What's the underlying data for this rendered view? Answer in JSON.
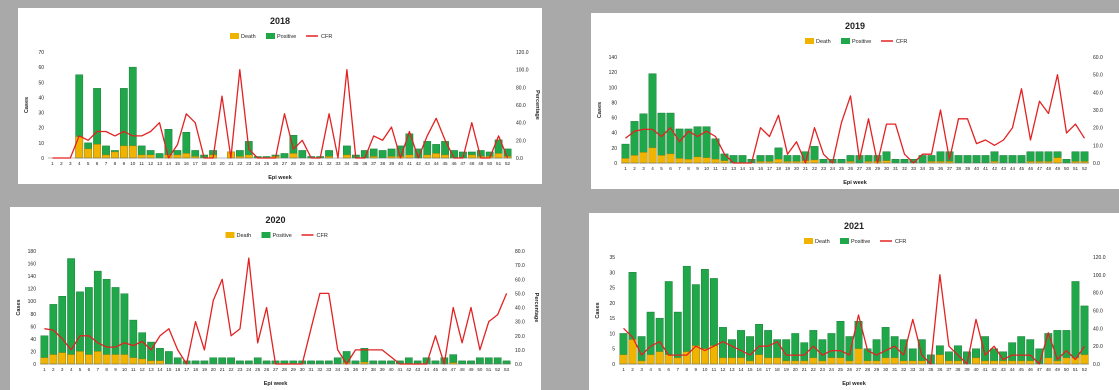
{
  "chart_data": [
    {
      "type": "bar+line",
      "title": "2018",
      "xlabel": "Epi week",
      "ylabel": "Cases",
      "y2label": "Percentage",
      "ylim": [
        0,
        70
      ],
      "y2lim": [
        0,
        120
      ],
      "yticks": [
        0,
        10,
        20,
        30,
        40,
        50,
        60,
        70
      ],
      "y2ticks": [
        "0.0",
        "20.0",
        "40.0",
        "60.0",
        "80.0",
        "100.0",
        "120.0"
      ],
      "legend": [
        "Death",
        "Positive",
        "CFR"
      ],
      "legend_position": "top-center",
      "colors": {
        "death": "#f0b400",
        "positive": "#1fa74a",
        "cfr": "#e32222"
      },
      "weeks": [
        "1",
        "2",
        "3",
        "4",
        "5",
        "6",
        "7",
        "8",
        "9",
        "10",
        "11",
        "12",
        "13",
        "14",
        "15",
        "16",
        "17",
        "18",
        "19",
        "20",
        "21",
        "22",
        "23",
        "24",
        "25",
        "26",
        "27",
        "28",
        "29",
        "30",
        "31",
        "32",
        "33",
        "34",
        "35",
        "36",
        "37",
        "38",
        "39",
        "40",
        "41",
        "42",
        "43",
        "44",
        "45",
        "46",
        "47",
        "48",
        "49",
        "50",
        "51",
        "52"
      ],
      "positive": [
        0,
        0,
        0,
        55,
        10,
        46,
        8,
        5,
        46,
        60,
        8,
        5,
        3,
        19,
        5,
        17,
        5,
        2,
        5,
        0,
        4,
        5,
        11,
        1,
        1,
        2,
        3,
        15,
        5,
        1,
        1,
        5,
        0,
        8,
        2,
        5,
        6,
        5,
        6,
        8,
        16,
        6,
        11,
        9,
        11,
        5,
        4,
        4,
        5,
        4,
        12,
        6
      ],
      "death": [
        0,
        0,
        0,
        14,
        6,
        9,
        2,
        4,
        8,
        8,
        2,
        2,
        0,
        2,
        2,
        3,
        1,
        0,
        2,
        0,
        4,
        1,
        2,
        0,
        0,
        1,
        0,
        3,
        0,
        0,
        0,
        1,
        0,
        2,
        0,
        0,
        1,
        0,
        1,
        1,
        2,
        0,
        2,
        3,
        2,
        0,
        0,
        2,
        1,
        1,
        3,
        1
      ],
      "cfr": [
        0,
        0,
        0,
        25,
        20,
        30,
        30,
        25,
        30,
        25,
        25,
        30,
        40,
        0,
        15,
        50,
        40,
        0,
        0,
        70,
        0,
        100,
        10,
        0,
        0,
        0,
        50,
        10,
        20,
        0,
        0,
        50,
        0,
        100,
        0,
        0,
        25,
        20,
        35,
        0,
        30,
        0,
        25,
        45,
        20,
        0,
        0,
        40,
        0,
        0,
        25,
        0
      ]
    },
    {
      "type": "bar+line",
      "title": "2019",
      "xlabel": "Epi week",
      "ylabel": "Cases",
      "y2label": "",
      "ylim": [
        0,
        140
      ],
      "y2lim": [
        0,
        60
      ],
      "yticks": [
        0,
        20,
        40,
        60,
        80,
        100,
        120,
        140
      ],
      "y2ticks": [
        "0.0",
        "10.0",
        "20.0",
        "30.0",
        "40.0",
        "50.0",
        "60.0"
      ],
      "legend": [
        "Death",
        "Positive",
        "CFR"
      ],
      "legend_position": "top-center",
      "colors": {
        "death": "#f0b400",
        "positive": "#1fa74a",
        "cfr": "#e32222"
      },
      "weeks": [
        "1",
        "2",
        "3",
        "4",
        "5",
        "6",
        "7",
        "8",
        "9",
        "10",
        "11",
        "12",
        "13",
        "14",
        "15",
        "16",
        "17",
        "18",
        "19",
        "20",
        "21",
        "22",
        "23",
        "24",
        "25",
        "26",
        "27",
        "28",
        "29",
        "30",
        "31",
        "32",
        "33",
        "34",
        "35",
        "36",
        "37",
        "38",
        "39",
        "40",
        "41",
        "42",
        "43",
        "44",
        "45",
        "46",
        "47",
        "48",
        "49",
        "50",
        "51",
        "52"
      ],
      "positive": [
        25,
        55,
        65,
        118,
        66,
        66,
        45,
        45,
        48,
        48,
        32,
        12,
        10,
        10,
        5,
        10,
        10,
        20,
        10,
        10,
        15,
        22,
        5,
        5,
        5,
        10,
        10,
        10,
        10,
        15,
        5,
        5,
        5,
        10,
        10,
        15,
        15,
        10,
        10,
        10,
        10,
        15,
        10,
        10,
        10,
        15,
        15,
        15,
        15,
        5,
        15,
        15
      ],
      "death": [
        6,
        10,
        14,
        20,
        10,
        12,
        6,
        5,
        8,
        7,
        5,
        3,
        0,
        0,
        0,
        2,
        2,
        5,
        2,
        2,
        3,
        4,
        0,
        0,
        0,
        2,
        0,
        2,
        2,
        3,
        0,
        0,
        0,
        0,
        2,
        2,
        2,
        0,
        0,
        0,
        0,
        2,
        0,
        0,
        0,
        2,
        2,
        2,
        7,
        0,
        2,
        2
      ],
      "cfr": [
        14,
        18,
        19,
        19,
        15,
        20,
        12,
        18,
        15,
        18,
        15,
        5,
        0,
        0,
        0,
        20,
        15,
        27,
        5,
        12,
        0,
        20,
        5,
        0,
        23,
        38,
        2,
        25,
        0,
        22,
        22,
        5,
        0,
        5,
        5,
        30,
        2,
        25,
        25,
        11,
        13,
        10,
        13,
        20,
        42,
        13,
        35,
        28,
        50,
        17,
        22,
        14
      ]
    },
    {
      "type": "bar+line",
      "title": "2020",
      "xlabel": "Epi week",
      "ylabel": "Cases",
      "y2label": "Percentage",
      "ylim": [
        0,
        180
      ],
      "y2lim": [
        0,
        80
      ],
      "yticks": [
        0,
        20,
        40,
        60,
        80,
        100,
        120,
        140,
        160,
        180
      ],
      "y2ticks": [
        "0.0",
        "10.0",
        "20.0",
        "30.0",
        "40.0",
        "50.0",
        "60.0",
        "70.0",
        "80.0"
      ],
      "legend": [
        "Death",
        "Positive",
        "CFR"
      ],
      "legend_position": "top-center",
      "colors": {
        "death": "#f0b400",
        "positive": "#1fa74a",
        "cfr": "#e32222"
      },
      "weeks": [
        "1",
        "2",
        "3",
        "4",
        "5",
        "6",
        "7",
        "8",
        "9",
        "10",
        "11",
        "12",
        "13",
        "14",
        "15",
        "16",
        "17",
        "18",
        "19",
        "20",
        "21",
        "22",
        "23",
        "24",
        "25",
        "26",
        "27",
        "28",
        "29",
        "30",
        "31",
        "32",
        "33",
        "34",
        "35",
        "36",
        "37",
        "38",
        "39",
        "40",
        "41",
        "42",
        "43",
        "44",
        "45",
        "46",
        "47",
        "48",
        "49",
        "50",
        "51",
        "52",
        "53"
      ],
      "positive": [
        45,
        95,
        108,
        168,
        115,
        122,
        148,
        135,
        122,
        112,
        70,
        50,
        35,
        25,
        20,
        10,
        5,
        5,
        5,
        10,
        10,
        10,
        5,
        5,
        10,
        5,
        5,
        5,
        5,
        5,
        5,
        5,
        5,
        10,
        20,
        5,
        25,
        5,
        5,
        5,
        5,
        10,
        5,
        10,
        5,
        10,
        15,
        5,
        5,
        10,
        10,
        10,
        5
      ],
      "death": [
        10,
        15,
        18,
        15,
        20,
        15,
        20,
        15,
        15,
        15,
        10,
        8,
        5,
        5,
        0,
        0,
        0,
        0,
        0,
        0,
        0,
        0,
        0,
        0,
        0,
        0,
        0,
        0,
        0,
        0,
        0,
        0,
        0,
        0,
        2,
        0,
        3,
        0,
        0,
        0,
        0,
        0,
        0,
        0,
        0,
        0,
        2,
        0,
        0,
        0,
        0,
        0,
        0
      ],
      "cfr": [
        25,
        24,
        18,
        10,
        20,
        20,
        15,
        12,
        12,
        15,
        13,
        16,
        10,
        20,
        25,
        10,
        0,
        30,
        10,
        45,
        60,
        20,
        25,
        75,
        15,
        40,
        0,
        0,
        0,
        0,
        25,
        50,
        50,
        10,
        0,
        10,
        10,
        10,
        10,
        5,
        0,
        0,
        0,
        0,
        20,
        0,
        40,
        15,
        40,
        10,
        30,
        35,
        50
      ]
    },
    {
      "type": "bar+line",
      "title": "2021",
      "xlabel": "Epi week",
      "ylabel": "Cases",
      "y2label": "",
      "ylim": [
        0,
        35
      ],
      "y2lim": [
        0,
        120
      ],
      "yticks": [
        0,
        5,
        10,
        15,
        20,
        25,
        30,
        35
      ],
      "y2ticks": [
        "0.0",
        "20.0",
        "40.0",
        "60.0",
        "80.0",
        "100.0",
        "120.0"
      ],
      "legend": [
        "Death",
        "Positive",
        "CFR"
      ],
      "legend_position": "top-center",
      "colors": {
        "death": "#f0b400",
        "positive": "#1fa74a",
        "cfr": "#e32222"
      },
      "weeks": [
        "1",
        "2",
        "3",
        "4",
        "5",
        "6",
        "7",
        "8",
        "9",
        "10",
        "11",
        "12",
        "13",
        "14",
        "15",
        "16",
        "17",
        "18",
        "19",
        "20",
        "21",
        "22",
        "23",
        "24",
        "25",
        "26",
        "27",
        "28",
        "29",
        "30",
        "31",
        "32",
        "33",
        "34",
        "35",
        "36",
        "37",
        "38",
        "39",
        "40",
        "41",
        "42",
        "43",
        "44",
        "45",
        "46",
        "47",
        "48",
        "49",
        "50",
        "51",
        "52"
      ],
      "positive": [
        10,
        30,
        9,
        17,
        15,
        27,
        17,
        32,
        26,
        31,
        28,
        12,
        8,
        11,
        9,
        13,
        11,
        8,
        8,
        10,
        7,
        11,
        8,
        10,
        14,
        9,
        14,
        5,
        8,
        12,
        9,
        8,
        5,
        8,
        3,
        6,
        4,
        6,
        4,
        5,
        9,
        5,
        4,
        7,
        9,
        8,
        5,
        10,
        11,
        11,
        27,
        19
      ],
      "death": [
        3,
        8,
        1,
        3,
        4,
        3,
        2,
        4,
        6,
        5,
        6,
        2,
        2,
        2,
        1,
        3,
        2,
        2,
        1,
        1,
        1,
        2,
        1,
        2,
        2,
        1,
        5,
        1,
        1,
        2,
        2,
        1,
        1,
        1,
        0,
        3,
        1,
        1,
        0,
        2,
        1,
        1,
        1,
        1,
        1,
        1,
        0,
        2,
        1,
        2,
        2,
        3
      ],
      "cfr": [
        40,
        30,
        10,
        20,
        25,
        10,
        10,
        10,
        20,
        15,
        20,
        25,
        20,
        15,
        10,
        20,
        20,
        25,
        10,
        10,
        10,
        20,
        10,
        15,
        15,
        10,
        55,
        15,
        10,
        15,
        20,
        10,
        50,
        10,
        0,
        100,
        20,
        10,
        0,
        50,
        10,
        20,
        5,
        10,
        10,
        10,
        0,
        35,
        5,
        15,
        5,
        20
      ]
    }
  ]
}
